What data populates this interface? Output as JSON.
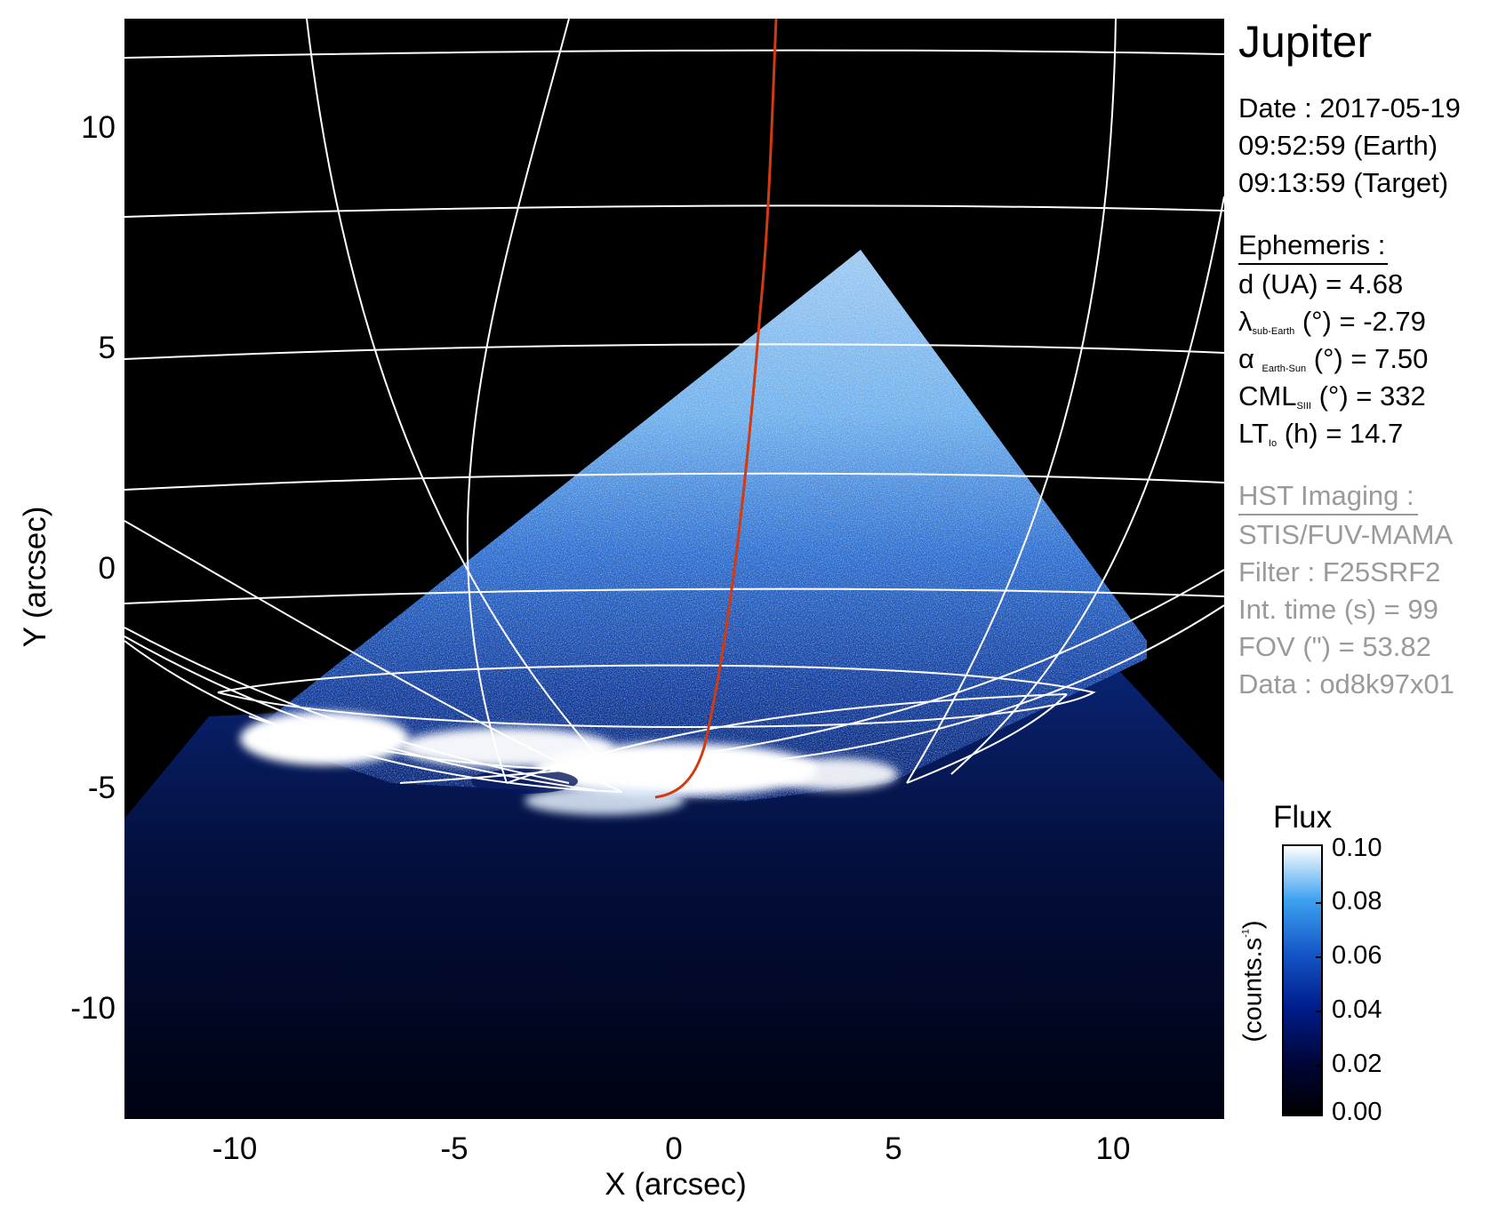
{
  "target": "Jupiter",
  "observation": {
    "date": "Date : 2017-05-19",
    "time_earth": "09:52:59 (Earth)",
    "time_target": "09:13:59 (Target)"
  },
  "ephemeris": {
    "heading": "Ephemeris :",
    "distance": "d (UA)    = 4.68",
    "lat_symbol": "λ",
    "lat_sub": "sub-Earth",
    "lat_rest": "(°) = -2.79",
    "phase_symbol": "α",
    "phase_sub": "Earth-Sun",
    "phase_rest": "(°) = 7.50",
    "cml_main": "CML",
    "cml_sub": "SIII",
    "cml_rest": "(°) = 332",
    "lt_main": "LT",
    "lt_sub": "Io",
    "lt_rest": "(h) = 14.7"
  },
  "hst": {
    "heading": "HST Imaging :",
    "instrument": "STIS/FUV-MAMA",
    "filter": "Filter : F25SRF2",
    "int_time": "Int. time (s) = 99",
    "fov": "FOV (\") = 53.82",
    "data_id": "Data : od8k97x01"
  },
  "axes": {
    "xlabel": "X (arcsec)",
    "ylabel": "Y (arcsec)",
    "x_ticks": [
      "-10",
      "-5",
      "0",
      "5",
      "10"
    ],
    "y_ticks": [
      "10",
      "5",
      "0",
      "-5",
      "-10"
    ],
    "x_range": [
      -12.5,
      12.5
    ],
    "y_range": [
      -12.5,
      12.5
    ]
  },
  "colorbar": {
    "title": "Flux",
    "unit_main": "(counts.s",
    "unit_sup": "-1",
    "unit_close": ")",
    "ticks": [
      "0.10",
      "0.08",
      "0.06",
      "0.04",
      "0.02",
      "0.00"
    ],
    "range": [
      0.0,
      0.1
    ]
  },
  "colors": {
    "background": "#000000",
    "grid": "#ffffff",
    "io_footprint_track": "#d23a12",
    "colormap": [
      "#000000",
      "#00063a",
      "#001d8c",
      "#1456c8",
      "#3ea2f0",
      "#ffffff"
    ]
  }
}
